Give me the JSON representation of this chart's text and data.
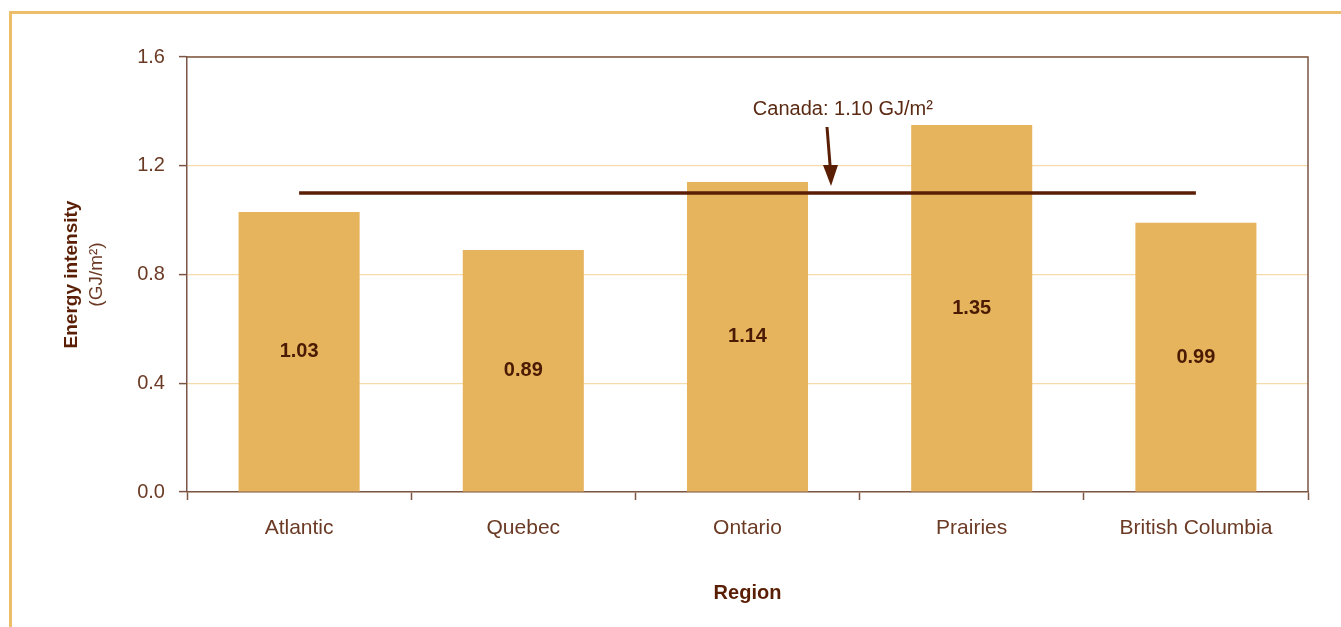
{
  "chart_data": {
    "type": "bar",
    "xlabel": "Region",
    "ylabel": "Energy intensity\n(GJ/m²)",
    "categories": [
      "Atlantic",
      "Quebec",
      "Ontario",
      "Prairies",
      "British Columbia"
    ],
    "values": [
      1.03,
      0.89,
      1.14,
      1.35,
      0.99
    ],
    "color": "#e7b45e",
    "ylim": [
      0,
      1.6
    ],
    "yticks": [
      {
        "value": 0,
        "label": "0.0"
      },
      0.4,
      0.8,
      1.2,
      1.6
    ],
    "grid": "y",
    "data_labels": true,
    "ref_lines": [
      {
        "axis": "y",
        "value": 1.1,
        "label": "Canada: 1.10 GJ/m²",
        "color": "#5a1e05"
      }
    ]
  }
}
